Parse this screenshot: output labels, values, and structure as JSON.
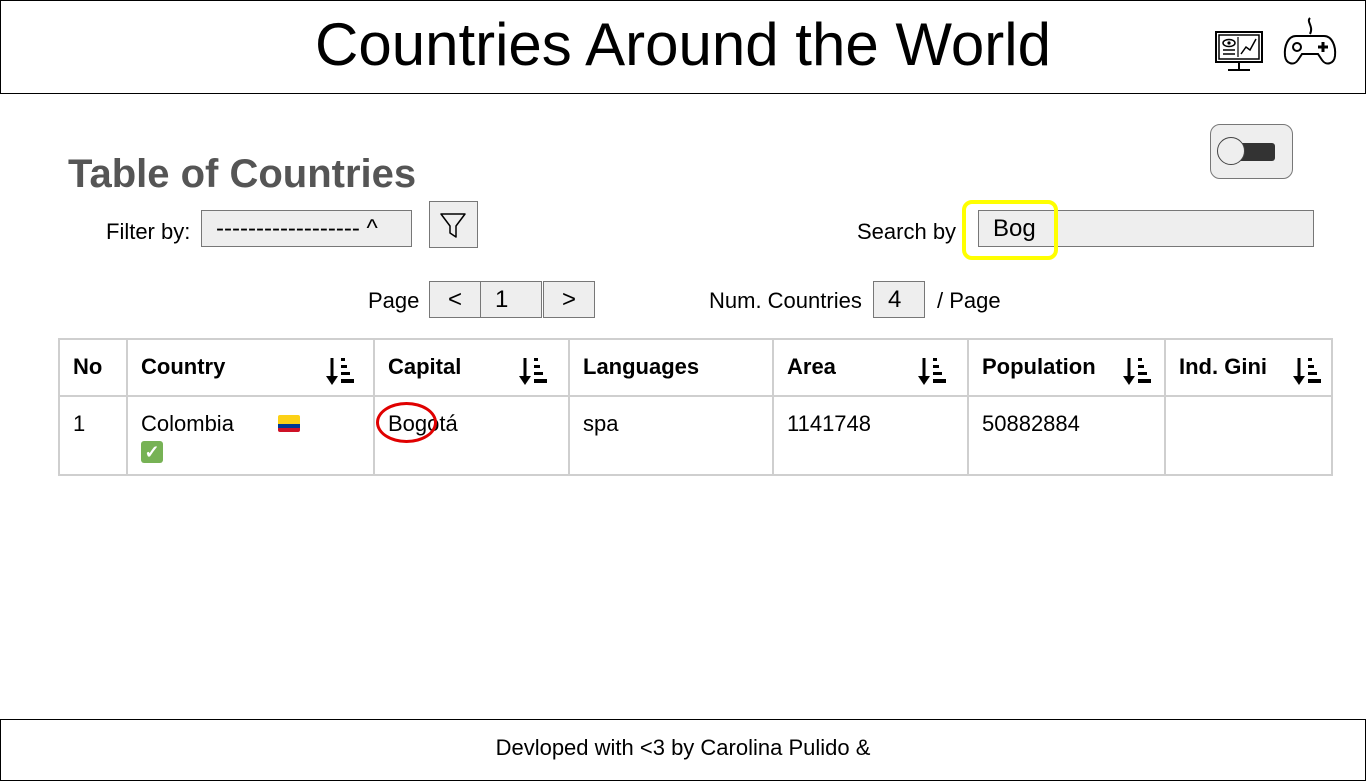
{
  "header": {
    "title": "Countries Around the World",
    "icons": [
      "monitor-dashboard-icon",
      "gamepad-icon"
    ]
  },
  "section": {
    "title": "Table of Countries"
  },
  "controls": {
    "filter_label": "Filter by:",
    "filter_value": "------------------ ^",
    "filter_icon": "funnel-icon",
    "search_label": "Search by",
    "search_value": "Bog",
    "page_label": "Page",
    "prev_label": "<",
    "page_number": "1",
    "next_label": ">",
    "num_countries_label": "Num. Countries",
    "num_countries_value": "4",
    "per_page_label": "/ Page",
    "toggle_state": "off"
  },
  "table": {
    "columns": [
      "No",
      "Country",
      "Capital",
      "Languages",
      "Area",
      "Population",
      "Ind. Gini"
    ],
    "rows": [
      {
        "no": "1",
        "country": "Colombia",
        "capital": "Bogotá",
        "languages": "spa",
        "area": "1141748",
        "population": "50882884",
        "gini": ""
      }
    ]
  },
  "colors": {
    "highlight_yellow": "#ffff00",
    "annotation_red": "#e00000",
    "title_gray": "#555555",
    "check_green": "#77b255",
    "flag_yellow": "#fcd116",
    "flag_blue": "#003893",
    "flag_red": "#ce1126"
  },
  "footer": {
    "text": "Devloped with <3 by Carolina Pulido &"
  }
}
